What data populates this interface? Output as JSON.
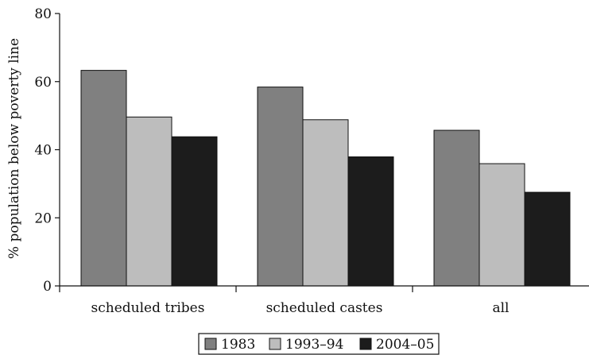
{
  "chart_data": {
    "type": "bar",
    "title": "",
    "xlabel": "",
    "ylabel": "% population below poverty line",
    "categories": [
      "scheduled tribes",
      "scheduled castes",
      "all"
    ],
    "series": [
      {
        "name": "1983",
        "color": "#808080",
        "values": [
          63.3,
          58.4,
          45.7
        ]
      },
      {
        "name": "1993–94",
        "color": "#bdbdbd",
        "values": [
          49.6,
          48.8,
          35.9
        ]
      },
      {
        "name": "2004–05",
        "color": "#1c1c1c",
        "values": [
          43.8,
          37.9,
          27.5
        ]
      }
    ],
    "ylim": [
      0,
      80
    ],
    "yticks": [
      "0",
      "20",
      "40",
      "60",
      "80"
    ],
    "grid": false,
    "legend": "bottom-center"
  }
}
